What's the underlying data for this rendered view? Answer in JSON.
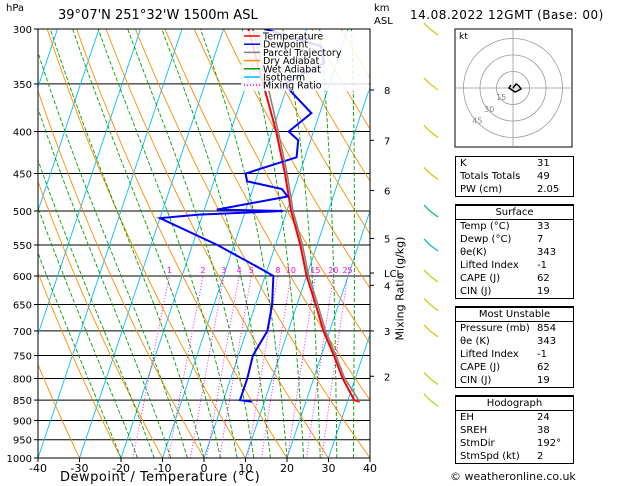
{
  "header": {
    "location": "39°07'N  251°32'W  1500m  ASL",
    "hpa_label": "hPa",
    "km_label": "km",
    "asl_label": "ASL",
    "date": "14.08.2022  12GMT  (Base: 00)"
  },
  "legend": [
    {
      "label": "Temperature",
      "color": "#ff0000",
      "style": "solid"
    },
    {
      "label": "Dewpoint",
      "color": "#0000ff",
      "style": "solid"
    },
    {
      "label": "Parcel Trajectory",
      "color": "#808080",
      "style": "solid"
    },
    {
      "label": "Dry Adiabat",
      "color": "#ff8c00",
      "style": "solid"
    },
    {
      "label": "Wet Adiabat",
      "color": "#00a000",
      "style": "solid"
    },
    {
      "label": "Isotherm",
      "color": "#00bfff",
      "style": "solid"
    },
    {
      "label": "Mixing Ratio",
      "color": "#ff00ff",
      "style": "dotted"
    }
  ],
  "chart_data": {
    "type": "line",
    "chart_kind": "skew-T log-P sounding",
    "xlabel": "Dewpoint / Temperature (°C)",
    "ylabel": "",
    "mixing_ratio_label": "Mixing Ratio (g/kg)",
    "x_ticks": [
      -40,
      -30,
      -20,
      -10,
      0,
      10,
      20,
      30,
      40
    ],
    "xlim": [
      -40,
      40
    ],
    "y_scale": "log",
    "ylim": [
      1000,
      300
    ],
    "pressure_levels": [
      300,
      350,
      400,
      450,
      500,
      550,
      600,
      650,
      700,
      750,
      800,
      850,
      900,
      950,
      1000
    ],
    "km_ticks": [
      {
        "label": "8",
        "p": 356
      },
      {
        "label": "7",
        "p": 410
      },
      {
        "label": "6",
        "p": 472
      },
      {
        "label": "5",
        "p": 540
      },
      {
        "label": "4",
        "p": 616
      },
      {
        "label": "3",
        "p": 700
      },
      {
        "label": "2",
        "p": 795
      },
      {
        "label": "LCL",
        "p": 595
      }
    ],
    "mixing_ratio_labels": [
      "1",
      "2",
      "3",
      "4",
      "5",
      "8",
      "10",
      "15",
      "20",
      "25"
    ],
    "mixing_ratio_values": [
      1,
      2,
      3,
      4,
      5,
      8,
      10,
      15,
      20,
      25
    ],
    "series": [
      {
        "name": "Temperature",
        "color": "#ff0000",
        "points": [
          [
            854,
            33
          ],
          [
            850,
            31.5
          ],
          [
            800,
            27
          ],
          [
            750,
            23
          ],
          [
            700,
            18.5
          ],
          [
            650,
            14.5
          ],
          [
            600,
            10
          ],
          [
            550,
            6
          ],
          [
            500,
            1
          ],
          [
            450,
            -3.5
          ],
          [
            400,
            -9
          ],
          [
            350,
            -16
          ],
          [
            300,
            -24
          ]
        ]
      },
      {
        "name": "Dewpoint",
        "color": "#0000ff",
        "points": [
          [
            854,
            7
          ],
          [
            850,
            4
          ],
          [
            800,
            4
          ],
          [
            750,
            3.5
          ],
          [
            700,
            5
          ],
          [
            650,
            4
          ],
          [
            600,
            2
          ],
          [
            590,
            -1
          ],
          [
            550,
            -14
          ],
          [
            510,
            -30
          ],
          [
            505,
            -21
          ],
          [
            500,
            -1
          ],
          [
            498,
            -17
          ],
          [
            480,
            -1
          ],
          [
            470,
            -3
          ],
          [
            460,
            -12
          ],
          [
            450,
            -13
          ],
          [
            430,
            -2
          ],
          [
            410,
            -3
          ],
          [
            400,
            -6
          ],
          [
            380,
            -2
          ],
          [
            350,
            -11
          ],
          [
            330,
            -3
          ],
          [
            315,
            -5
          ],
          [
            300,
            -20
          ]
        ]
      },
      {
        "name": "Parcel Trajectory",
        "color": "#808080",
        "points": [
          [
            854,
            33
          ],
          [
            800,
            27.5
          ],
          [
            750,
            23.5
          ],
          [
            700,
            19
          ],
          [
            650,
            15
          ],
          [
            600,
            10.5
          ],
          [
            550,
            6.5
          ],
          [
            500,
            1.5
          ],
          [
            450,
            -3
          ],
          [
            400,
            -8.5
          ],
          [
            350,
            -15
          ],
          [
            300,
            -23
          ]
        ]
      }
    ]
  },
  "hodograph": {
    "label": "kt",
    "ring_labels": [
      "45",
      "30",
      "15"
    ]
  },
  "indices": {
    "rows": [
      {
        "label": "K",
        "value": "31"
      },
      {
        "label": "Totals Totals",
        "value": "49"
      },
      {
        "label": "PW (cm)",
        "value": "2.05"
      }
    ],
    "surface_title": "Surface",
    "surface": [
      {
        "label": "Temp (°C)",
        "value": "33"
      },
      {
        "label": "Dewp (°C)",
        "value": "7"
      },
      {
        "label": "θe(K)",
        "value": "343"
      },
      {
        "label": "Lifted Index",
        "value": "-1"
      },
      {
        "label": "CAPE (J)",
        "value": "62"
      },
      {
        "label": "CIN (J)",
        "value": "19"
      }
    ],
    "unstable_title": "Most Unstable",
    "unstable": [
      {
        "label": "Pressure (mb)",
        "value": "854"
      },
      {
        "label": "θe (K)",
        "value": "343"
      },
      {
        "label": "Lifted Index",
        "value": "-1"
      },
      {
        "label": "CAPE (J)",
        "value": "62"
      },
      {
        "label": "CIN (J)",
        "value": "19"
      }
    ],
    "hodo_title": "Hodograph",
    "hodo": [
      {
        "label": "EH",
        "value": "24"
      },
      {
        "label": "SREH",
        "value": "38"
      },
      {
        "label": "StmDir",
        "value": "192°"
      },
      {
        "label": "StmSpd (kt)",
        "value": "2"
      }
    ]
  },
  "footer": "© weatheronline.co.uk"
}
